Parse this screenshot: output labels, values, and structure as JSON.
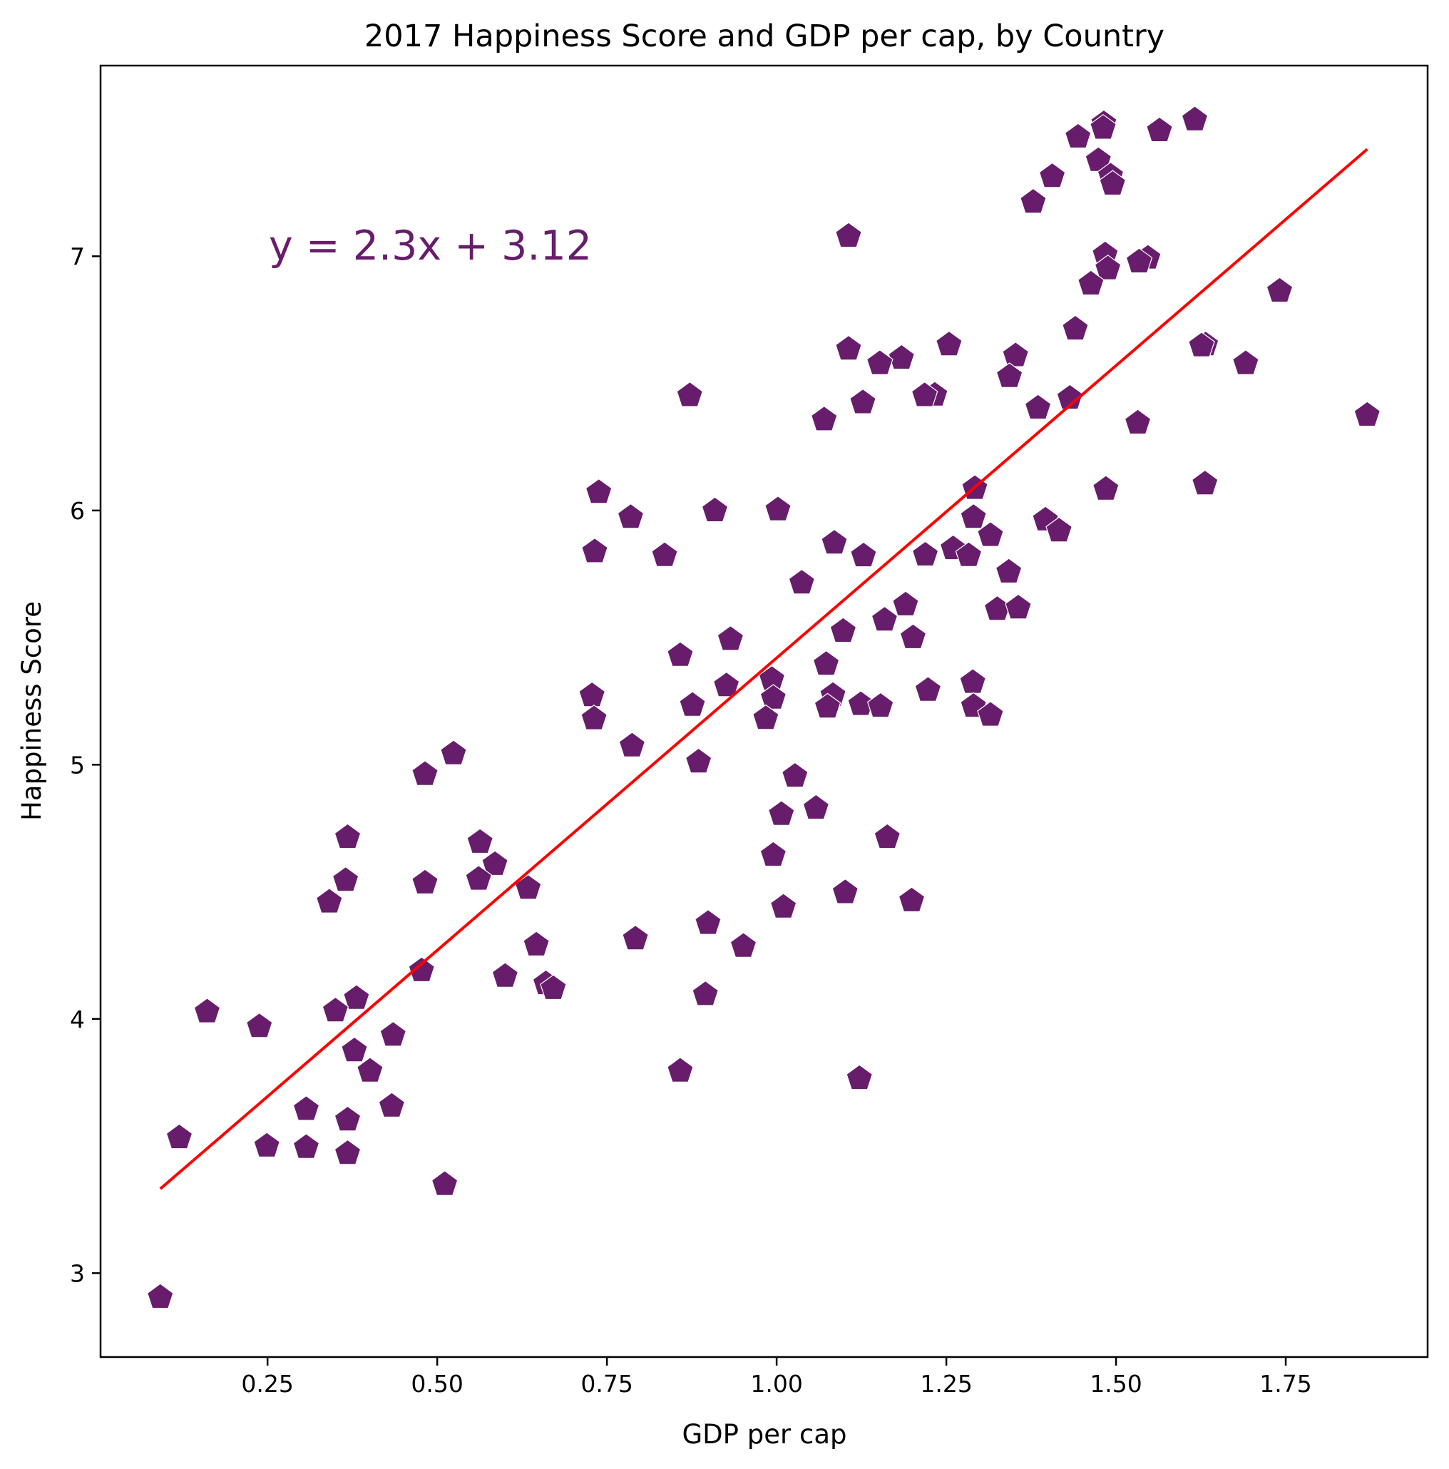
{
  "chart_data": {
    "type": "scatter",
    "title": "2017 Happiness Score and GDP per cap, by Country",
    "xlabel": "GDP per cap",
    "ylabel": "Happiness Score",
    "xlim": [
      0.004,
      1.959
    ],
    "ylim": [
      2.67,
      7.75
    ],
    "xticks": [
      "0.25",
      "0.50",
      "0.75",
      "1.00",
      "1.25",
      "1.50",
      "1.75"
    ],
    "yticks": [
      "3",
      "4",
      "5",
      "6",
      "7"
    ],
    "grid": false,
    "equation": "y = 2.3x + 3.12",
    "regression": {
      "slope": 2.3,
      "intercept": 3.12,
      "x": [
        0.092,
        1.87
      ]
    },
    "colors": {
      "marker": "#671d6b",
      "line": "#ff0000",
      "equation": "#671d6b"
    },
    "marker": "pentagon",
    "series": [
      {
        "x": [
          1.616,
          1.482,
          1.481,
          1.564,
          1.444,
          1.474,
          1.492,
          1.406,
          1.495,
          1.378,
          1.484,
          1.488,
          1.547,
          1.463,
          1.534,
          1.106,
          1.741,
          1.44,
          1.632,
          1.352,
          1.626,
          1.691,
          1.254,
          1.106,
          1.184,
          1.152,
          1.343,
          1.233,
          1.218,
          1.385,
          1.432,
          0.872,
          1.127,
          1.532,
          1.07,
          1.87,
          1.631,
          1.485,
          0.738,
          1.292,
          1.002,
          0.909,
          0.785,
          1.396,
          1.416,
          1.29,
          1.315,
          1.085,
          0.732,
          0.835,
          1.128,
          1.219,
          1.26,
          1.283,
          1.342,
          1.037,
          1.325,
          1.356,
          1.19,
          1.159,
          0.932,
          1.098,
          1.201,
          0.858,
          1.073,
          0.993,
          1.289,
          0.728,
          0.926,
          1.223,
          0.876,
          1.083,
          1.124,
          1.153,
          1.075,
          0.995,
          1.29,
          1.315,
          0.984,
          0.731,
          0.787,
          0.885,
          0.524,
          0.482,
          1.027,
          1.058,
          1.007,
          0.368,
          0.563,
          1.163,
          0.585,
          0.995,
          0.365,
          0.561,
          0.482,
          0.634,
          0.341,
          1.101,
          1.199,
          1.01,
          0.899,
          0.792,
          0.646,
          0.951,
          0.381,
          0.6,
          0.66,
          0.671,
          0.161,
          0.895,
          0.35,
          0.477,
          0.238,
          0.435,
          0.401,
          0.378,
          0.858,
          1.122,
          0.433,
          0.307,
          0.368,
          0.12,
          0.249,
          0.307,
          0.368,
          0.511,
          0.092
        ],
        "y": [
          7.537,
          7.522,
          7.504,
          7.494,
          7.469,
          7.377,
          7.316,
          7.314,
          7.284,
          7.213,
          7.006,
          6.951,
          6.993,
          6.891,
          6.978,
          7.079,
          6.863,
          6.714,
          6.652,
          6.609,
          6.648,
          6.578,
          6.652,
          6.635,
          6.599,
          6.578,
          6.527,
          6.454,
          6.452,
          6.403,
          6.442,
          6.452,
          6.424,
          6.344,
          6.357,
          6.375,
          6.105,
          6.084,
          6.071,
          6.087,
          6.003,
          5.999,
          5.973,
          5.963,
          5.92,
          5.973,
          5.902,
          5.872,
          5.838,
          5.823,
          5.822,
          5.825,
          5.85,
          5.823,
          5.758,
          5.715,
          5.611,
          5.617,
          5.629,
          5.569,
          5.493,
          5.525,
          5.5,
          5.43,
          5.395,
          5.336,
          5.324,
          5.272,
          5.311,
          5.293,
          5.234,
          5.273,
          5.237,
          5.23,
          5.227,
          5.262,
          5.23,
          5.195,
          5.182,
          5.181,
          5.074,
          5.011,
          5.043,
          4.962,
          4.955,
          4.829,
          4.805,
          4.714,
          4.695,
          4.714,
          4.608,
          4.644,
          4.545,
          4.55,
          4.535,
          4.514,
          4.46,
          4.497,
          4.465,
          4.44,
          4.376,
          4.315,
          4.291,
          4.286,
          4.081,
          4.168,
          4.139,
          4.12,
          4.028,
          4.096,
          4.032,
          4.19,
          3.97,
          3.936,
          3.795,
          3.875,
          3.795,
          3.766,
          3.657,
          3.644,
          3.603,
          3.533,
          3.5,
          3.495,
          3.471,
          3.349,
          2.905
        ]
      }
    ]
  }
}
